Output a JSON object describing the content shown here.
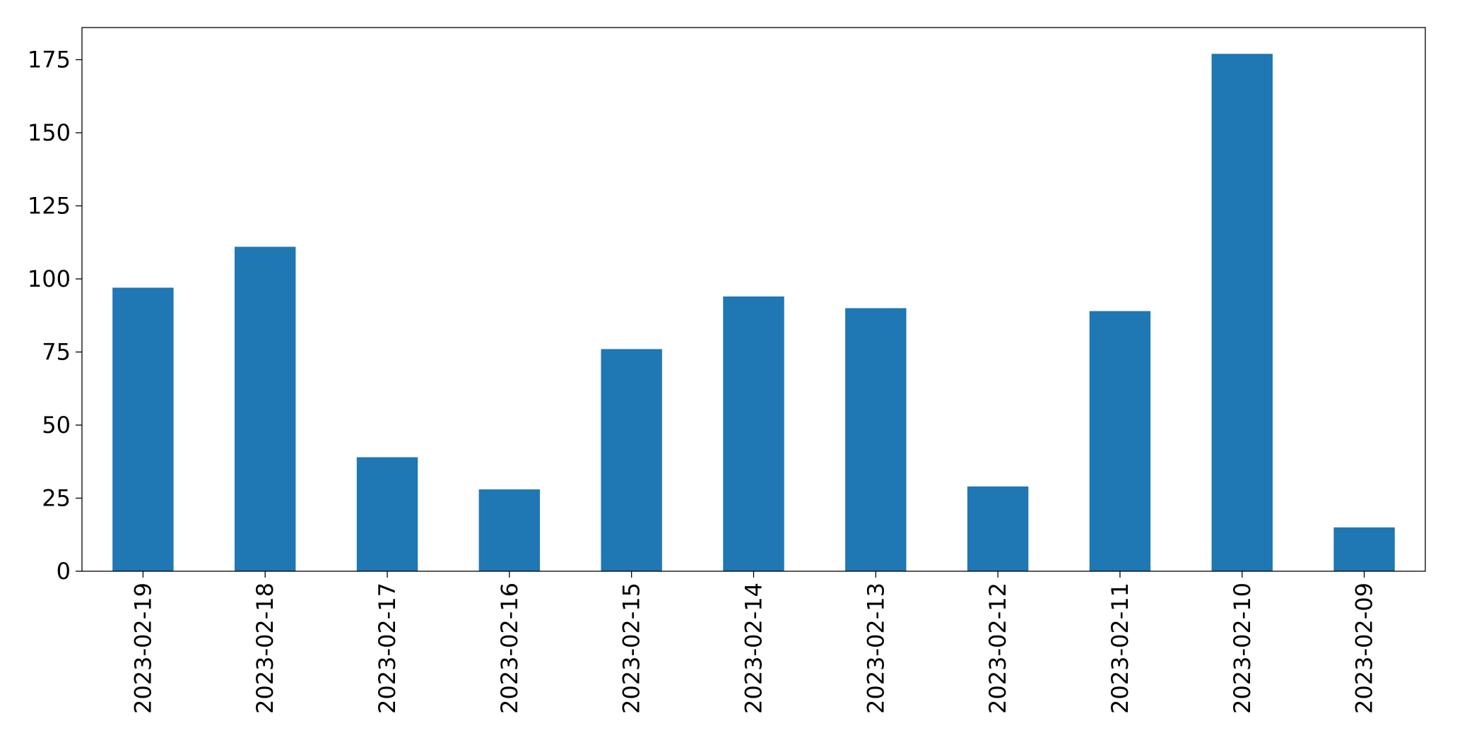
{
  "chart_data": {
    "type": "bar",
    "categories": [
      "2023-02-19",
      "2023-02-18",
      "2023-02-17",
      "2023-02-16",
      "2023-02-15",
      "2023-02-14",
      "2023-02-13",
      "2023-02-12",
      "2023-02-11",
      "2023-02-10",
      "2023-02-09"
    ],
    "values": [
      97,
      111,
      39,
      28,
      76,
      94,
      90,
      29,
      89,
      177,
      15
    ],
    "ylim": [
      0,
      186
    ],
    "yticks": [
      0,
      25,
      50,
      75,
      100,
      125,
      150,
      175
    ],
    "ytick_labels": [
      "0",
      "25",
      "50",
      "75",
      "100",
      "125",
      "150",
      "175"
    ],
    "grid": false,
    "legend": "none",
    "bar_color": "#1f77b4"
  }
}
